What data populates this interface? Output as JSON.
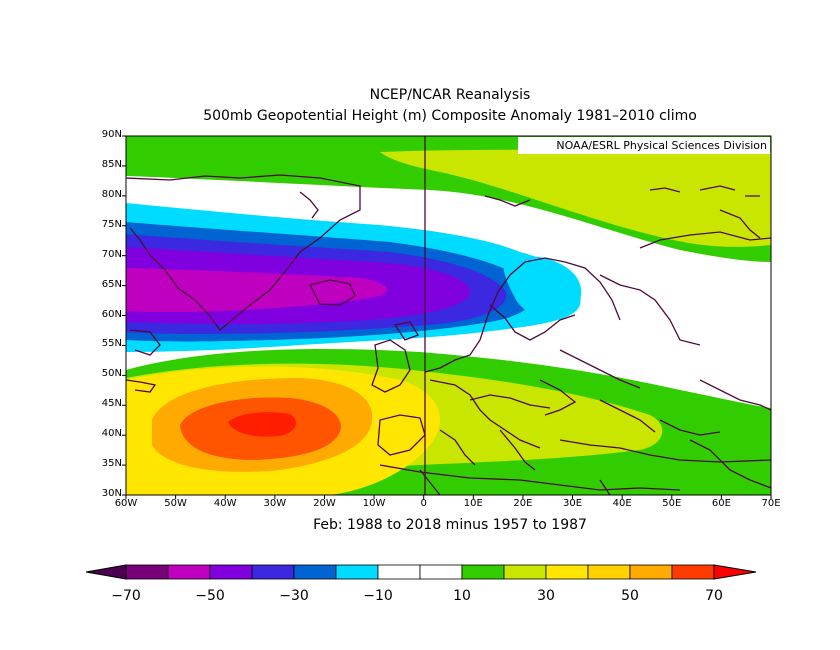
{
  "map": {
    "title_line1": "NCEP/NCAR Reanalysis",
    "title_line2": "500mb Geopotential Height (m) Composite Anomaly 1981–2010 climo",
    "credit": "NOAA/ESRL Physical Sciences Division",
    "subtitle": "Feb: 1988 to 2018 minus 1957 to 1987",
    "lat_labels": [
      "90N",
      "85N",
      "80N",
      "75N",
      "70N",
      "65N",
      "60N",
      "55N",
      "50N",
      "45N",
      "40N",
      "35N",
      "30N"
    ],
    "lon_labels": [
      "60W",
      "50W",
      "40W",
      "30W",
      "20W",
      "10W",
      "0",
      "10E",
      "20E",
      "30E",
      "40E",
      "50E",
      "60E",
      "70E"
    ],
    "lat_range": [
      30,
      90
    ],
    "lon_range": [
      -60,
      70
    ]
  },
  "colorbar": {
    "labels": [
      "−70",
      "−50",
      "−30",
      "−10",
      "10",
      "30",
      "50",
      "70"
    ],
    "colors": [
      "#780078",
      "#c000c0",
      "#8000e0",
      "#3c28e0",
      "#0064d2",
      "#00dcff",
      "#ffffff",
      "#ffffff",
      "#32cd00",
      "#c8e600",
      "#ffe600",
      "#ffd200",
      "#ffaa00",
      "#ff3c00"
    ],
    "end_low": "#4b0050",
    "end_high": "#ff0000"
  },
  "fill_colors": {
    "green": "#32cd00",
    "lime": "#c8e600",
    "yellow": "#ffe600",
    "orange": "#ffaa00",
    "red_orange": "#ff5500",
    "red": "#ff1e00",
    "cyan": "#00dcff",
    "blue1": "#0064d2",
    "blue2": "#3c28e0",
    "violet": "#8000e0",
    "magenta": "#c000c0",
    "coast": "#4b0a3c"
  }
}
